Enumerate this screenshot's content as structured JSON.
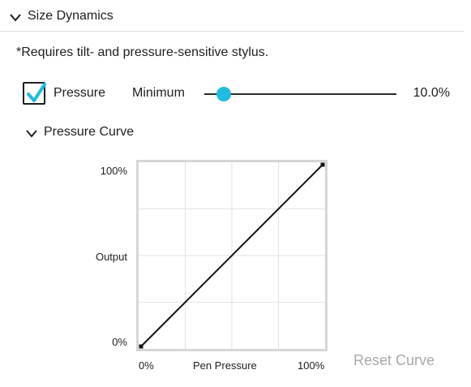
{
  "section": {
    "title": "Size Dynamics",
    "icon": "chevron-down-icon"
  },
  "note": "*Requires tilt- and pressure-sensitive stylus.",
  "pressure": {
    "checkbox_checked": true,
    "label": "Pressure",
    "slider_label": "Minimum",
    "slider_value_text": "10.0%",
    "slider_fraction": 0.1
  },
  "curve": {
    "title": "Pressure Curve",
    "y_axis": {
      "top": "100%",
      "label": "Output",
      "bottom": "0%"
    },
    "x_axis": {
      "left": "0%",
      "label": "Pen Pressure",
      "right": "100%"
    },
    "points": [
      [
        0,
        0
      ],
      [
        1,
        1
      ]
    ],
    "reset_label": "Reset Curve"
  },
  "colors": {
    "accent": "#20bbe0",
    "border": "#d6d6d6",
    "disabled_text": "#a9a9a9"
  }
}
